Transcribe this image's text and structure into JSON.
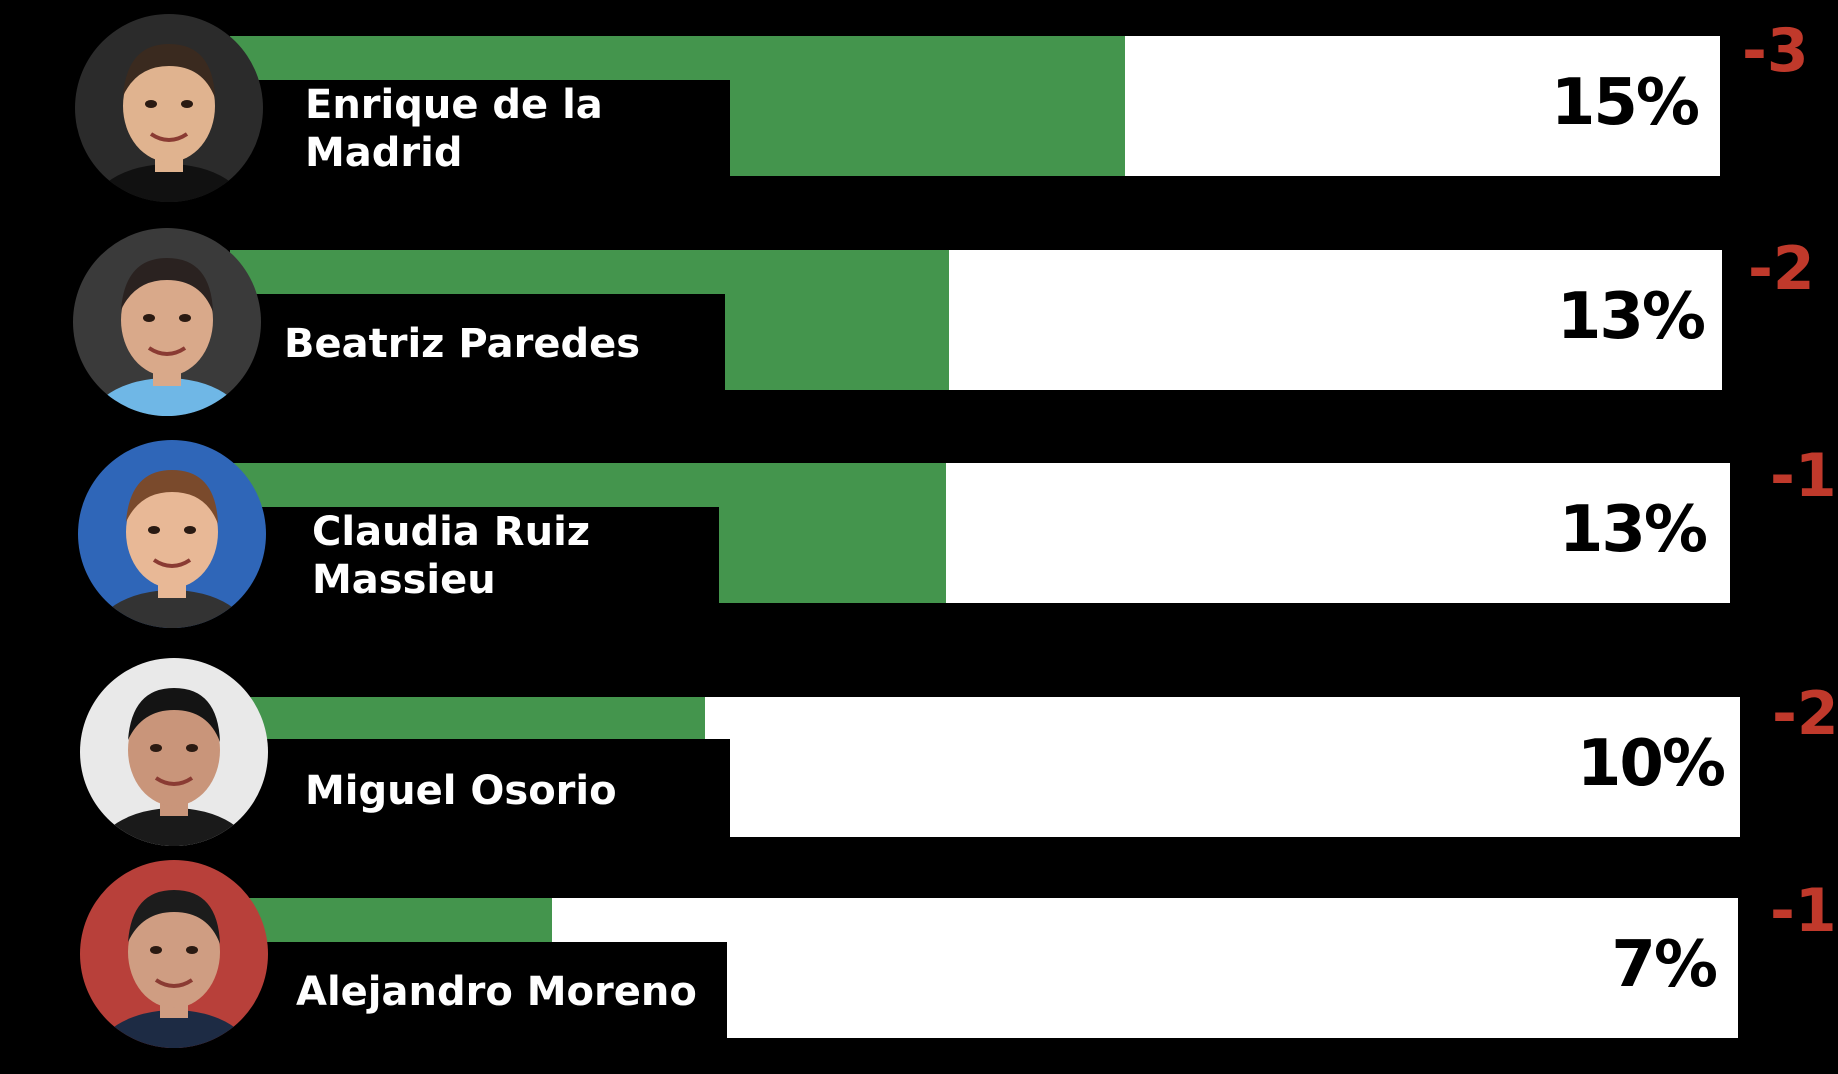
{
  "chart_data": {
    "type": "bar",
    "orientation": "horizontal",
    "categories": [
      "Enrique de la\nMadrid",
      "Beatriz Paredes",
      "Claudia Ruiz\nMassieu",
      "Miguel Osorio",
      "Alejandro Moreno"
    ],
    "values": [
      15,
      13,
      13,
      10,
      7
    ],
    "value_labels": [
      "15%",
      "13%",
      "13%",
      "10%",
      "7%"
    ],
    "changes": [
      "-3",
      "-2",
      "-1",
      "-2",
      "-1"
    ],
    "xlim": [
      0,
      100
    ],
    "grid": false,
    "legend": "none"
  },
  "colors": {
    "background": "#000000",
    "bar_fill": "#44954d",
    "bar_track": "#ffffff",
    "change_text": "#c0392b",
    "name_text": "#ffffff",
    "value_text": "#000000"
  },
  "avatars": [
    "portrait-icon",
    "portrait-icon",
    "portrait-icon",
    "portrait-icon",
    "portrait-icon"
  ]
}
